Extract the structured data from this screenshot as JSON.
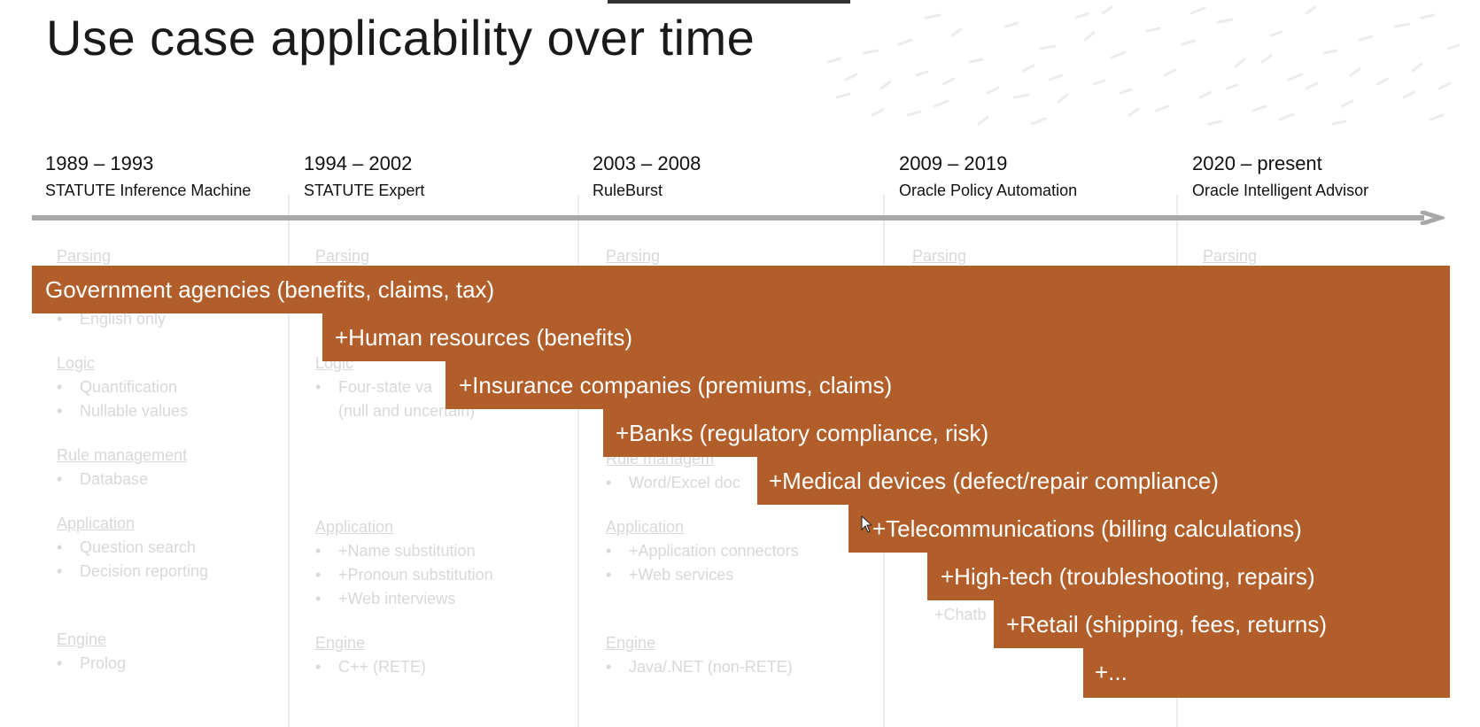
{
  "title": "Use case applicability over time",
  "eras": [
    {
      "years": "1989 – 1993",
      "product": "STATUTE Inference Machine"
    },
    {
      "years": "1994 – 2002",
      "product": "STATUTE Expert"
    },
    {
      "years": "2003 – 2008",
      "product": "RuleBurst"
    },
    {
      "years": "2009 – 2019",
      "product": "Oracle Policy Automation"
    },
    {
      "years": "2020 – present",
      "product": "Oracle Intelligent Advisor"
    }
  ],
  "background_columns": [
    [
      {
        "kind": "head",
        "text": "Parsing"
      },
      {
        "kind": "bullet",
        "text": "English only"
      },
      {
        "kind": "head",
        "text": "Logic"
      },
      {
        "kind": "bullet",
        "text": "Quantification"
      },
      {
        "kind": "bullet",
        "text": "Nullable values"
      },
      {
        "kind": "head",
        "text": "Rule management"
      },
      {
        "kind": "bullet",
        "text": "Database"
      },
      {
        "kind": "head",
        "text": "Application"
      },
      {
        "kind": "bullet",
        "text": "Question search"
      },
      {
        "kind": "bullet",
        "text": "Decision reporting"
      },
      {
        "kind": "head",
        "text": "Engine"
      },
      {
        "kind": "bullet",
        "text": "Prolog"
      }
    ],
    [
      {
        "kind": "head",
        "text": "Parsing"
      },
      {
        "kind": "head",
        "text": "Logic"
      },
      {
        "kind": "bullet",
        "text": "Four-state va"
      },
      {
        "kind": "plain",
        "text": "(null and uncertain)"
      },
      {
        "kind": "head",
        "text": "Application"
      },
      {
        "kind": "bullet",
        "text": "+Name substitution"
      },
      {
        "kind": "bullet",
        "text": "+Pronoun substitution"
      },
      {
        "kind": "bullet",
        "text": "+Web interviews"
      },
      {
        "kind": "head",
        "text": "Engine"
      },
      {
        "kind": "bullet",
        "text": "C++ (RETE)"
      }
    ],
    [
      {
        "kind": "head",
        "text": "Parsing"
      },
      {
        "kind": "head",
        "text": "Rule managem"
      },
      {
        "kind": "bullet",
        "text": "Word/Excel doc"
      },
      {
        "kind": "head",
        "text": "Application"
      },
      {
        "kind": "bullet",
        "text": "+Application connectors"
      },
      {
        "kind": "bullet",
        "text": "+Web services"
      },
      {
        "kind": "head",
        "text": "Engine"
      },
      {
        "kind": "bullet",
        "text": "Java/.NET (non-RETE)"
      }
    ],
    [
      {
        "kind": "head",
        "text": "Parsing"
      },
      {
        "kind": "plain",
        "text": "+Chatb"
      }
    ],
    [
      {
        "kind": "head",
        "text": "Parsing"
      }
    ]
  ],
  "use_cases": [
    "Government agencies (benefits, claims, tax)",
    "+Human resources (benefits)",
    "+Insurance companies (premiums, claims)",
    "+Banks (regulatory compliance, risk)",
    "+Medical devices (defect/repair compliance)",
    "+Telecommunications (billing calculations)",
    "+High-tech (troubleshooting, repairs)",
    "+Retail (shipping, fees, returns)",
    "+..."
  ],
  "colors": {
    "band": "#b15e2a",
    "band_text": "#ffffff",
    "timeline_arrow": "#a8a8a8",
    "ghost_text": "#d8d8d8"
  },
  "icons": [
    "arrow-right-icon",
    "mouse-pointer-icon"
  ]
}
